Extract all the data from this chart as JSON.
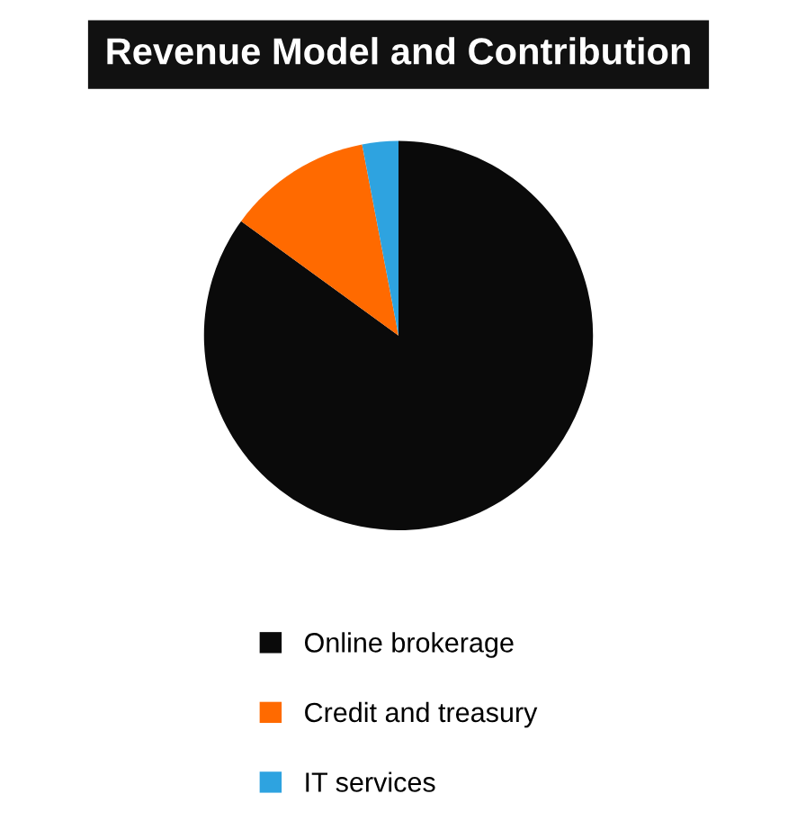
{
  "chart_data": {
    "type": "pie",
    "title": "Revenue Model and Contribution",
    "categories": [
      "Online brokerage",
      "Credit and treasury",
      "IT services"
    ],
    "values": [
      85,
      12,
      3
    ],
    "colors": [
      "#0a0a0a",
      "#ff6a00",
      "#2ea3e0"
    ],
    "legend": "bottom"
  }
}
